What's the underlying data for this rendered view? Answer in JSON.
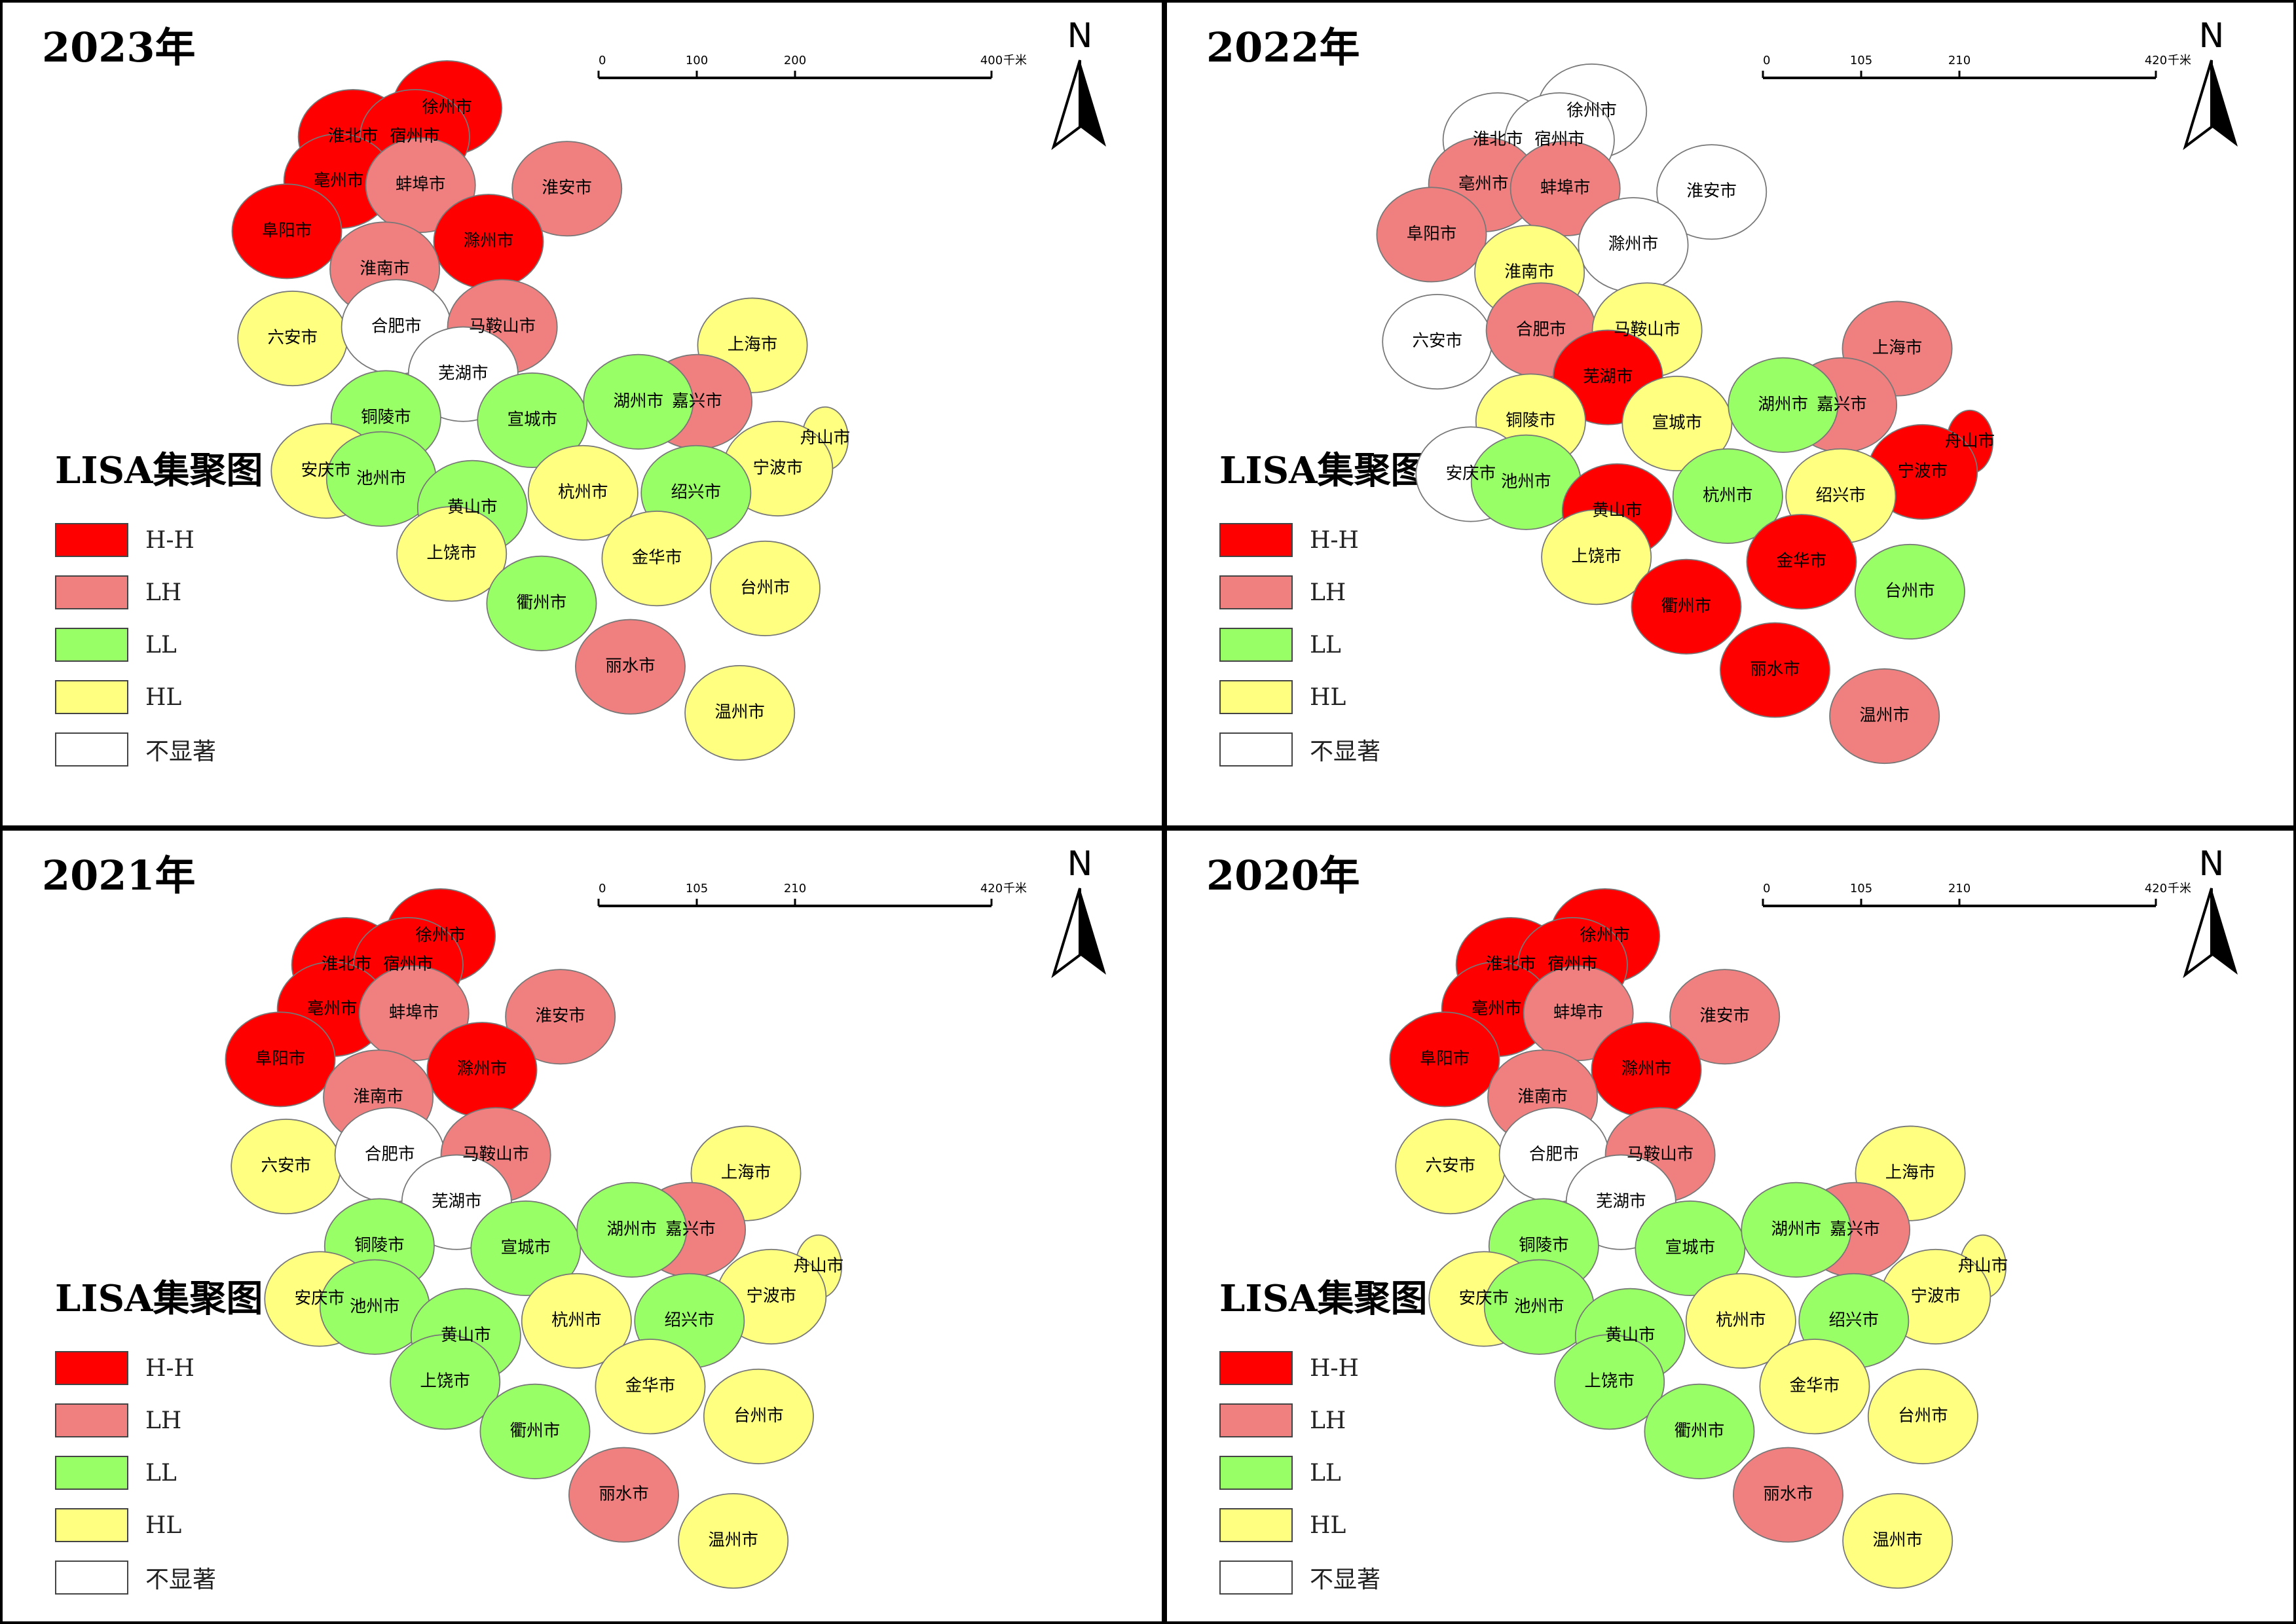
{
  "legend": {
    "title": "LISA集聚图",
    "classes": [
      {
        "code": "HH",
        "label": "H-H",
        "color": "#ff0000"
      },
      {
        "code": "LH",
        "label": "LH",
        "color": "#f08080"
      },
      {
        "code": "LL",
        "label": "LL",
        "color": "#99ff66"
      },
      {
        "code": "HL",
        "label": "HL",
        "color": "#ffff80"
      },
      {
        "code": "NS",
        "label": "不显著",
        "color": "#ffffff"
      }
    ]
  },
  "cities": [
    "徐州市",
    "淮北市",
    "宿州市",
    "亳州市",
    "蚌埠市",
    "阜阳市",
    "淮安市",
    "滁州市",
    "淮南市",
    "六安市",
    "合肥市",
    "马鞍山市",
    "芜湖市",
    "上海市",
    "嘉兴市",
    "铜陵市",
    "宣城市",
    "湖州市",
    "舟山市",
    "安庆市",
    "池州市",
    "宁波市",
    "绍兴市",
    "杭州市",
    "黄山市",
    "上饶市",
    "金华市",
    "衢州市",
    "台州市",
    "丽水市",
    "温州市"
  ],
  "north_label": "N",
  "scale_unit": "千米",
  "panels": [
    {
      "title": "2023年",
      "scale_ticks": [
        "0",
        "100",
        "200",
        "400"
      ],
      "classes": {
        "徐州市": "HH",
        "淮北市": "HH",
        "宿州市": "HH",
        "亳州市": "HH",
        "阜阳市": "HH",
        "滁州市": "HH",
        "蚌埠市": "LH",
        "淮南市": "LH",
        "淮安市": "LH",
        "马鞍山市": "LH",
        "嘉兴市": "LH",
        "丽水市": "LH",
        "铜陵市": "LL",
        "池州市": "LL",
        "黄山市": "LL",
        "宣城市": "LL",
        "湖州市": "LL",
        "绍兴市": "LL",
        "衢州市": "LL",
        "六安市": "HL",
        "安庆市": "HL",
        "上海市": "HL",
        "舟山市": "HL",
        "宁波市": "HL",
        "杭州市": "HL",
        "金华市": "HL",
        "台州市": "HL",
        "温州市": "HL",
        "上饶市": "HL",
        "合肥市": "NS",
        "芜湖市": "NS"
      }
    },
    {
      "title": "2022年",
      "scale_ticks": [
        "0",
        "105",
        "210",
        "420"
      ],
      "classes": {
        "徐州市": "NS",
        "淮北市": "NS",
        "宿州市": "NS",
        "亳州市": "LH",
        "阜阳市": "LH",
        "蚌埠市": "LH",
        "滁州市": "NS",
        "淮安市": "NS",
        "淮南市": "HL",
        "六安市": "NS",
        "合肥市": "LH",
        "马鞍山市": "HL",
        "芜湖市": "HH",
        "铜陵市": "HL",
        "池州市": "LL",
        "安庆市": "NS",
        "宣城市": "HL",
        "湖州市": "LL",
        "嘉兴市": "LH",
        "上海市": "LH",
        "舟山市": "HH",
        "宁波市": "HH",
        "绍兴市": "HL",
        "杭州市": "LL",
        "黄山市": "HH",
        "上饶市": "HL",
        "金华市": "HH",
        "衢州市": "HH",
        "丽水市": "HH",
        "台州市": "LL",
        "温州市": "LH"
      }
    },
    {
      "title": "2021年",
      "scale_ticks": [
        "0",
        "105",
        "210",
        "420"
      ],
      "classes": {
        "徐州市": "HH",
        "淮北市": "HH",
        "宿州市": "HH",
        "亳州市": "HH",
        "阜阳市": "HH",
        "滁州市": "HH",
        "蚌埠市": "LH",
        "淮南市": "LH",
        "淮安市": "LH",
        "马鞍山市": "LH",
        "嘉兴市": "LH",
        "丽水市": "LH",
        "铜陵市": "LL",
        "池州市": "LL",
        "黄山市": "LL",
        "宣城市": "LL",
        "湖州市": "LL",
        "绍兴市": "LL",
        "衢州市": "LL",
        "上饶市": "LL",
        "六安市": "HL",
        "安庆市": "HL",
        "上海市": "HL",
        "舟山市": "HL",
        "宁波市": "HL",
        "杭州市": "HL",
        "金华市": "HL",
        "台州市": "HL",
        "温州市": "HL",
        "合肥市": "NS",
        "芜湖市": "NS"
      }
    },
    {
      "title": "2020年",
      "scale_ticks": [
        "0",
        "105",
        "210",
        "420"
      ],
      "classes": {
        "徐州市": "HH",
        "淮北市": "HH",
        "宿州市": "HH",
        "亳州市": "HH",
        "阜阳市": "HH",
        "滁州市": "HH",
        "蚌埠市": "LH",
        "淮南市": "LH",
        "淮安市": "LH",
        "马鞍山市": "LH",
        "嘉兴市": "LH",
        "丽水市": "LH",
        "铜陵市": "LL",
        "池州市": "LL",
        "黄山市": "LL",
        "宣城市": "LL",
        "湖州市": "LL",
        "绍兴市": "LL",
        "衢州市": "LL",
        "上饶市": "LL",
        "六安市": "HL",
        "安庆市": "HL",
        "上海市": "HL",
        "舟山市": "HL",
        "宁波市": "HL",
        "杭州市": "HL",
        "金华市": "HL",
        "台州市": "HL",
        "温州市": "HL",
        "合肥市": "NS",
        "芜湖市": "NS"
      }
    }
  ]
}
